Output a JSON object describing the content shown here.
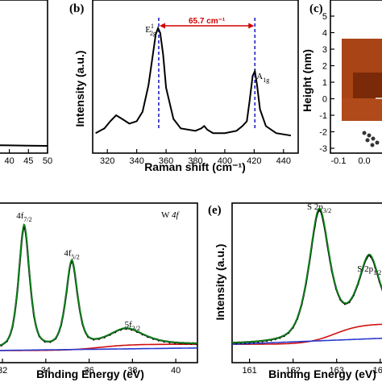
{
  "chart_data": [
    {
      "panel": "(a)",
      "type": "line",
      "x_ticks": [
        "40",
        "45",
        "50"
      ],
      "xlim": [
        36.5,
        50
      ],
      "series": [
        {
          "x": [
            36.5,
            40,
            45,
            50
          ],
          "values": [
            0.33,
            0.32,
            0.31,
            0.3
          ]
        }
      ],
      "colors": {
        "line": "#000000"
      }
    },
    {
      "panel": "(b)",
      "type": "line",
      "xlabel": "Raman shift (cm⁻¹)",
      "ylabel": "Intensity (a.u.)",
      "xlim": [
        310,
        450
      ],
      "x_ticks": [
        "320",
        "340",
        "360",
        "380",
        "400",
        "420",
        "440"
      ],
      "series": [
        {
          "x": [
            312,
            318,
            322,
            326,
            330,
            335,
            340,
            344,
            348,
            351,
            353,
            354.5,
            356,
            358,
            360,
            365,
            370,
            380,
            384,
            386,
            388,
            392,
            400,
            408,
            412,
            415,
            417,
            419,
            420.5,
            422,
            424,
            428,
            435,
            445
          ],
          "values": [
            0.12,
            0.16,
            0.22,
            0.27,
            0.24,
            0.2,
            0.22,
            0.3,
            0.52,
            0.78,
            0.95,
            1.0,
            0.96,
            0.78,
            0.5,
            0.24,
            0.16,
            0.14,
            0.16,
            0.18,
            0.15,
            0.12,
            0.12,
            0.14,
            0.18,
            0.22,
            0.4,
            0.6,
            0.64,
            0.52,
            0.32,
            0.18,
            0.12,
            0.1
          ]
        }
      ],
      "annotations": {
        "peak1": {
          "text": "E",
          "sup": "1",
          "sub": "2g",
          "x": 355
        },
        "peak2": {
          "text": "A",
          "sub": "1g",
          "x": 420.5
        },
        "separation": "65.7 cm⁻¹"
      },
      "colors": {
        "line": "#000000",
        "guide": "#1f1fbf",
        "arrow": "#d00000"
      }
    },
    {
      "panel": "(c)",
      "type": "image",
      "ylabel": "Height (nm)",
      "y_ticks": [
        "5",
        "4",
        "3",
        "2",
        "1",
        "0",
        "-1",
        "-2",
        "-3"
      ],
      "x_ticks": [
        "-0.1",
        "0.0"
      ],
      "colors": {
        "afm": "#b04a1a",
        "afm_dark": "#7a2a08"
      }
    },
    {
      "panel": "(d)",
      "type": "line",
      "xlabel": "Binding Energy (eV)",
      "label": "W 4f",
      "xlim": [
        31.7,
        41
      ],
      "x_ticks": [
        "32",
        "34",
        "36",
        "38",
        "40"
      ],
      "peaks": [
        {
          "label": "4f",
          "sub": "7/2",
          "center": 33.0,
          "height": 1.0,
          "width": 0.28
        },
        {
          "label": "4f",
          "sub": "5/2",
          "center": 35.2,
          "height": 0.7,
          "width": 0.3
        },
        {
          "label": "5f",
          "sub": "3/2",
          "center": 37.7,
          "height": 0.13,
          "width": 0.9
        }
      ],
      "colors": {
        "envelope": "#000000",
        "fit": "#0b8a1a",
        "background": "#d01010",
        "baseline": "#2a3ad0"
      }
    },
    {
      "panel": "(e)",
      "type": "line",
      "xlabel": "Binding Energy (eV)",
      "ylabel": "Intensity (a.u.)",
      "xlim": [
        160.6,
        164.3
      ],
      "x_ticks": [
        "161",
        "162",
        "163",
        "164"
      ],
      "peaks": [
        {
          "label": "S 2p",
          "sub": "3/2",
          "center": 162.6,
          "height": 1.0,
          "width": 0.26
        },
        {
          "label": "S 2p",
          "sub": "1/2",
          "center": 163.75,
          "height": 0.52,
          "width": 0.27
        }
      ],
      "colors": {
        "envelope": "#000000",
        "fit": "#0b8a1a",
        "background": "#d01010",
        "baseline": "#2a3ad0"
      }
    }
  ]
}
